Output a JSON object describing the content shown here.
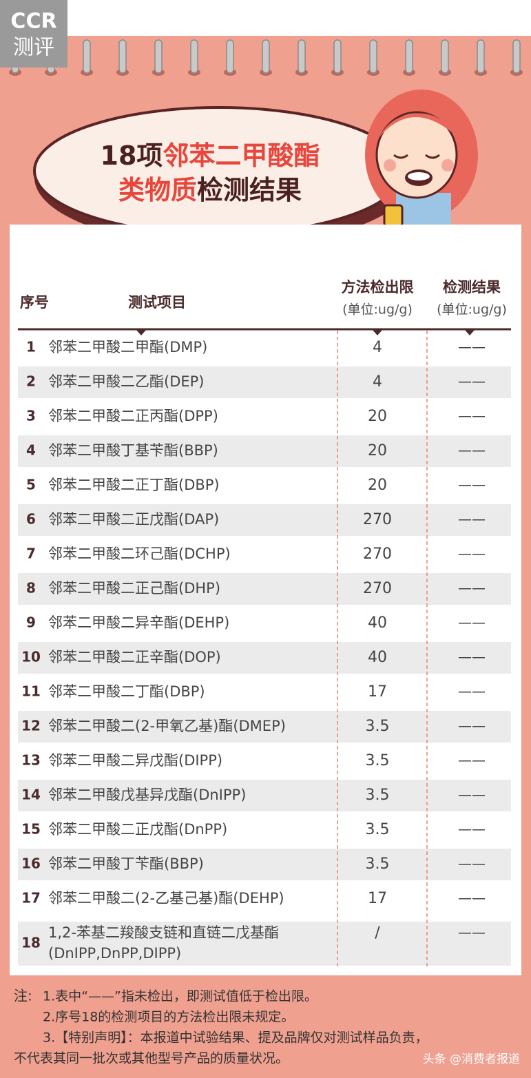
{
  "logo": {
    "top": "CCR",
    "bottom": "测评"
  },
  "title": {
    "line1": [
      "18项",
      "邻苯二甲酸酯"
    ],
    "line2": [
      "类物质",
      "检测结果"
    ]
  },
  "table": {
    "headers": {
      "no": "序号",
      "item": "测试项目",
      "limit": [
        "方法检出限",
        "(单位:ug/g)"
      ],
      "result": [
        "检测结果",
        "(单位:ug/g)"
      ]
    },
    "rows": [
      {
        "no": "1",
        "name": [
          "邻苯二甲酸二甲酯(DMP)"
        ],
        "limit": "4",
        "result": "——"
      },
      {
        "no": "2",
        "name": [
          "邻苯二甲酸二乙酯(DEP)"
        ],
        "limit": "4",
        "result": "——"
      },
      {
        "no": "3",
        "name": [
          "邻苯二甲酸二正丙酯(DPP)"
        ],
        "limit": "20",
        "result": "——"
      },
      {
        "no": "4",
        "name": [
          "邻苯二甲酸丁基苄酯(BBP)"
        ],
        "limit": "20",
        "result": "——"
      },
      {
        "no": "5",
        "name": [
          "邻苯二甲酸二正丁酯(DBP)"
        ],
        "limit": "20",
        "result": "——"
      },
      {
        "no": "6",
        "name": [
          "邻苯二甲酸二正戊酯(DAP)"
        ],
        "limit": "270",
        "result": "——"
      },
      {
        "no": "7",
        "name": [
          "邻苯二甲酸二环己酯(DCHP)"
        ],
        "limit": "270",
        "result": "——"
      },
      {
        "no": "8",
        "name": [
          "邻苯二甲酸二正己酯(DHP)"
        ],
        "limit": "270",
        "result": "——"
      },
      {
        "no": "9",
        "name": [
          "邻苯二甲酸二异辛酯(DEHP)"
        ],
        "limit": "40",
        "result": "——"
      },
      {
        "no": "10",
        "name": [
          "邻苯二甲酸二正辛酯(DOP)"
        ],
        "limit": "40",
        "result": "——"
      },
      {
        "no": "11",
        "name": [
          "邻苯二甲酸二丁酯(DBP)"
        ],
        "limit": "17",
        "result": "——"
      },
      {
        "no": "12",
        "name": [
          "邻苯二甲酸二(2-甲氧乙基)酯(DMEP)"
        ],
        "limit": "3.5",
        "result": "——"
      },
      {
        "no": "13",
        "name": [
          "邻苯二甲酸二异戊酯(DIPP)"
        ],
        "limit": "3.5",
        "result": "——"
      },
      {
        "no": "14",
        "name": [
          "邻苯二甲酸戊基异戊酯(DnIPP)"
        ],
        "limit": "3.5",
        "result": "——"
      },
      {
        "no": "15",
        "name": [
          "邻苯二甲酸二正戊酯(DnPP)"
        ],
        "limit": "3.5",
        "result": "——"
      },
      {
        "no": "16",
        "name": [
          "邻苯二甲酸丁苄酯(BBP)"
        ],
        "limit": "3.5",
        "result": "——"
      },
      {
        "no": "17",
        "name": [
          "邻苯二甲酸二(2-乙基己基)酯(DEHP)"
        ],
        "limit": "17",
        "result": "——"
      },
      {
        "no": "18",
        "name": [
          "1,2-苯基二羧酸支链和直链二戊基酯",
          "(DnIPP,DnPP,DIPP)"
        ],
        "limit": "/",
        "result": "——"
      }
    ]
  },
  "notes": {
    "label": "注:",
    "lines": [
      "1.表中“——”指未检出，即测试值低于检出限。",
      "2.序号18的检测项目的方法检出限未规定。",
      "3.【特别声明】：本报道中试验结果、提及品牌仅对测试样品负责，",
      "不代表其同一批次或其他型号产品的质量状况。"
    ]
  },
  "watermark": "头条 @消费者报道"
}
